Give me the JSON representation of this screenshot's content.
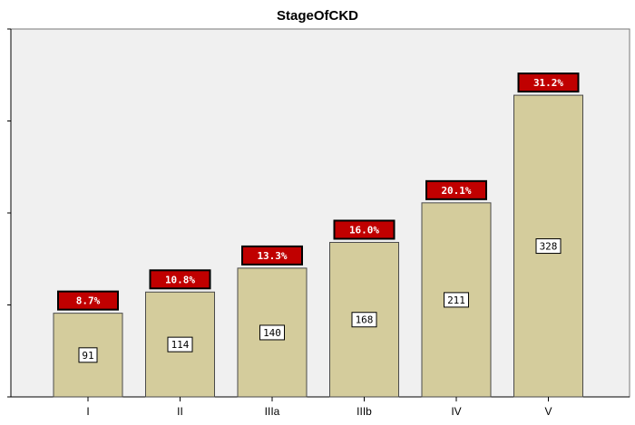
{
  "chart_data": {
    "type": "bar",
    "title": "StageOfCKD",
    "xlabel": "",
    "ylabel": "",
    "categories": [
      "I",
      "II",
      "IIIa",
      "IIIb",
      "IV",
      "V"
    ],
    "values": [
      91,
      114,
      140,
      168,
      211,
      328
    ],
    "percent_labels": [
      "8.7%",
      "10.8%",
      "13.3%",
      "16.0%",
      "20.1%",
      "31.2%"
    ],
    "count_labels": [
      "91",
      "114",
      "140",
      "168",
      "211",
      "328"
    ],
    "ylim": [
      0,
      400
    ],
    "yticks": [
      0,
      100,
      200,
      300,
      400
    ],
    "grid": false,
    "legend": "none",
    "colors": {
      "plot_background": "#f0f0f0",
      "bar_fill": "#d4cc9c",
      "bar_stroke": "#4a4a4a",
      "percent_box_fill": "#c00000",
      "percent_text": "#ffffff",
      "count_box_fill": "#ffffff",
      "axis": "#000000"
    }
  }
}
